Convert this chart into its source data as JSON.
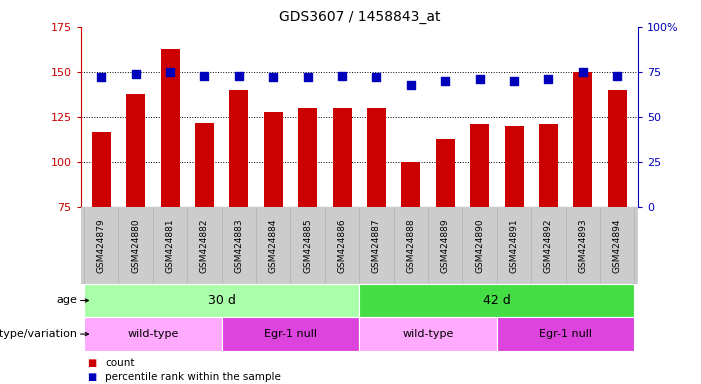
{
  "title": "GDS3607 / 1458843_at",
  "samples": [
    "GSM424879",
    "GSM424880",
    "GSM424881",
    "GSM424882",
    "GSM424883",
    "GSM424884",
    "GSM424885",
    "GSM424886",
    "GSM424887",
    "GSM424888",
    "GSM424889",
    "GSM424890",
    "GSM424891",
    "GSM424892",
    "GSM424893",
    "GSM424894"
  ],
  "counts": [
    117,
    138,
    163,
    122,
    140,
    128,
    130,
    130,
    130,
    100,
    113,
    121,
    120,
    121,
    150,
    140
  ],
  "percentiles": [
    72,
    74,
    75,
    73,
    73,
    72,
    72,
    73,
    72,
    68,
    70,
    71,
    70,
    71,
    75,
    73
  ],
  "ylim_left": [
    75,
    175
  ],
  "ylim_right": [
    0,
    100
  ],
  "yticks_left": [
    75,
    100,
    125,
    150,
    175
  ],
  "yticks_right": [
    0,
    25,
    50,
    75,
    100
  ],
  "bar_color": "#cc0000",
  "dot_color": "#0000bb",
  "age_groups": [
    {
      "label": "30 d",
      "start": 0,
      "end": 8,
      "color": "#aaffaa"
    },
    {
      "label": "42 d",
      "start": 8,
      "end": 16,
      "color": "#44dd44"
    }
  ],
  "genotype_groups": [
    {
      "label": "wild-type",
      "start": 0,
      "end": 4,
      "color": "#ffaaff"
    },
    {
      "label": "Egr-1 null",
      "start": 4,
      "end": 8,
      "color": "#dd44dd"
    },
    {
      "label": "wild-type",
      "start": 8,
      "end": 12,
      "color": "#ffaaff"
    },
    {
      "label": "Egr-1 null",
      "start": 12,
      "end": 16,
      "color": "#dd44dd"
    }
  ],
  "legend_count_color": "#cc0000",
  "legend_dot_color": "#0000bb",
  "grid_color": "#000000",
  "tick_label_color_left": "#cc0000",
  "tick_label_color_right": "#0000bb",
  "xlabel_bg": "#cccccc",
  "bar_width": 0.55,
  "dot_size": 28
}
